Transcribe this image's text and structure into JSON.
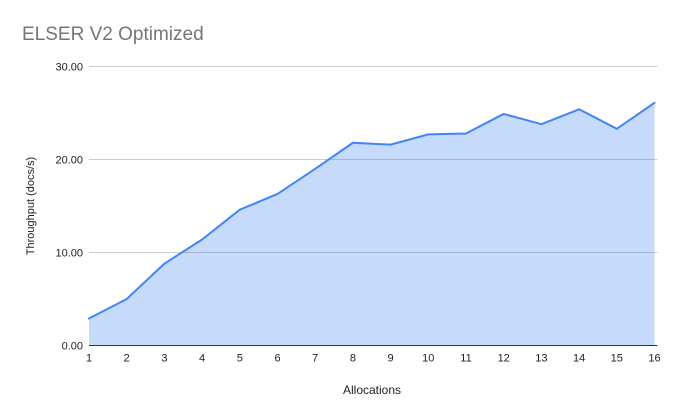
{
  "chart_data": {
    "type": "area",
    "title": "ELSER V2 Optimized",
    "xlabel": "Allocations",
    "ylabel": "Throughput (docs/s)",
    "categories": [
      "1",
      "2",
      "3",
      "4",
      "5",
      "6",
      "7",
      "8",
      "9",
      "10",
      "11",
      "12",
      "13",
      "14",
      "15",
      "16"
    ],
    "values": [
      2.9,
      5.0,
      8.8,
      11.4,
      14.6,
      16.3,
      19.0,
      21.8,
      21.6,
      22.7,
      22.8,
      24.9,
      23.8,
      25.4,
      23.3,
      26.1
    ],
    "ylim": [
      0,
      30
    ],
    "y_tick_values": [
      0,
      10,
      20,
      30
    ],
    "y_tick_labels": [
      "0.00",
      "10.00",
      "20.00",
      "30.00"
    ],
    "grid": true,
    "legend": "none",
    "colors": {
      "line": "#4285f4",
      "fill": "#4285f4",
      "fill_opacity": 0.3,
      "grid": "#cccccc",
      "axis_line": "#333333",
      "title": "#757575",
      "tick_label": "#222222",
      "axis_label": "#222222",
      "background": "#ffffff"
    }
  }
}
